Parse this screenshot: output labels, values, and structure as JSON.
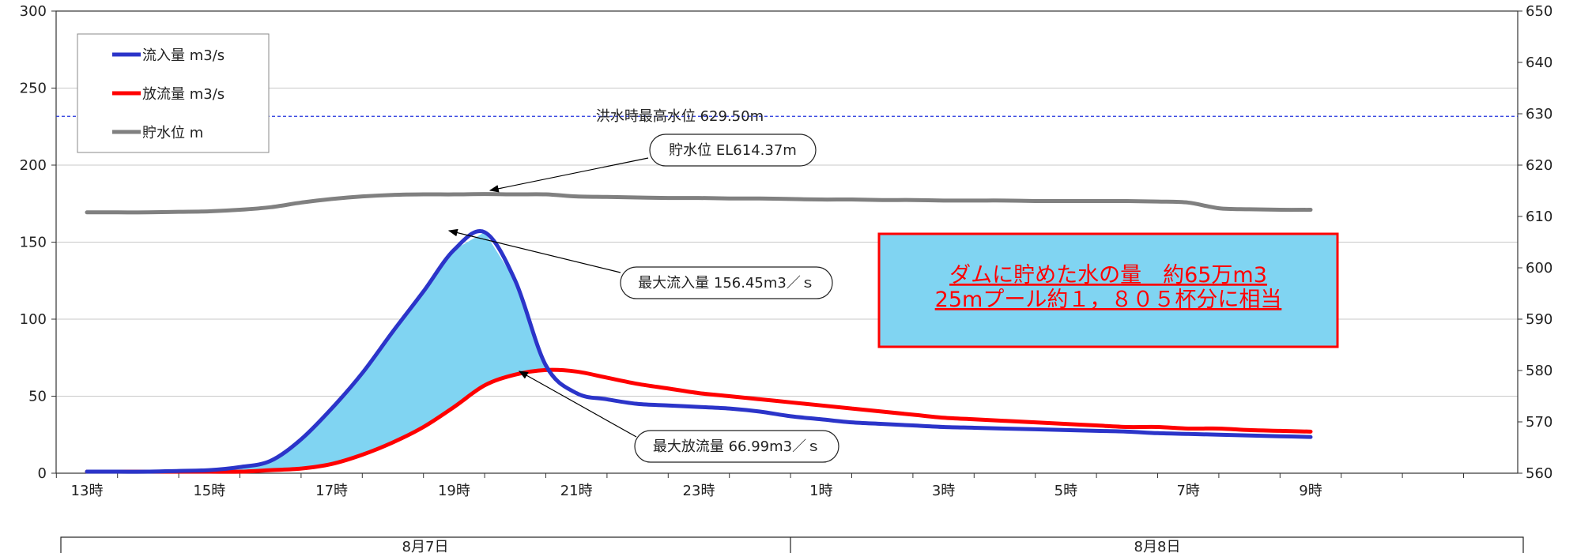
{
  "chart_data": {
    "type": "line",
    "x_ticks": [
      "13時",
      "15時",
      "17時",
      "19時",
      "21時",
      "23時",
      "1時",
      "3時",
      "5時",
      "7時",
      "9時"
    ],
    "y_left_ticks": [
      "0",
      "50",
      "100",
      "150",
      "200",
      "250",
      "300"
    ],
    "y_left_range": [
      0,
      300
    ],
    "y_right_ticks": [
      "560",
      "570",
      "580",
      "590",
      "600",
      "610",
      "620",
      "630",
      "640",
      "650"
    ],
    "y_right_range": [
      560,
      650
    ],
    "grid": true,
    "legend_position": "top-left",
    "x_hours": [
      0,
      0.5,
      1,
      1.5,
      2,
      2.5,
      3,
      3.5,
      4,
      4.5,
      5,
      5.5,
      6,
      6.5,
      7,
      7.5,
      8,
      8.5,
      9,
      9.5,
      10,
      10.5,
      11,
      11.5,
      12,
      12.5,
      13,
      13.5,
      14,
      14.5,
      15,
      15.5,
      16,
      16.5,
      17,
      17.5,
      18,
      18.5,
      19,
      19.5,
      20
    ],
    "series": [
      {
        "name": "流入量 m3/s",
        "axis": "left",
        "color": "#2b34c9",
        "values": [
          1,
          1,
          1,
          1.5,
          2,
          4,
          8,
          22,
          42,
          65,
          92,
          118,
          145,
          156.45,
          125,
          70,
          52,
          48,
          45,
          44,
          43,
          42,
          40,
          37,
          35,
          33,
          32,
          31,
          30,
          29.5,
          29,
          28.5,
          28,
          27.5,
          27,
          26,
          25.5,
          25,
          24.5,
          24,
          23.5
        ]
      },
      {
        "name": "放流量 m3/s",
        "axis": "left",
        "color": "#ff0000",
        "values": [
          1,
          1,
          1,
          1,
          1,
          1,
          2,
          3,
          6,
          12,
          20,
          30,
          43,
          57,
          64,
          66.99,
          66,
          62,
          58,
          55,
          52,
          50,
          48,
          46,
          44,
          42,
          40,
          38,
          36,
          35,
          34,
          33,
          32,
          31,
          30,
          30,
          29,
          29,
          28,
          27.5,
          27
        ]
      },
      {
        "name": "貯水位 m",
        "axis": "right",
        "color": "#808080",
        "values": [
          610.8,
          610.8,
          610.8,
          610.9,
          611,
          611.3,
          611.8,
          612.7,
          613.4,
          613.9,
          614.2,
          614.3,
          614.3,
          614.37,
          614.3,
          614.3,
          613.9,
          613.8,
          613.7,
          613.6,
          613.6,
          613.5,
          613.5,
          613.4,
          613.3,
          613.3,
          613.2,
          613.2,
          613.1,
          613.1,
          613.1,
          613,
          613,
          613,
          613,
          612.9,
          612.7,
          611.6,
          611.4,
          611.3,
          611.3
        ]
      }
    ],
    "reference_line": {
      "label": "洪水時最高水位 629.50m",
      "axis": "right",
      "value": 629.5,
      "color": "#2233dd"
    },
    "annotations": [
      {
        "key": "level",
        "text": "貯水位 EL614.37m",
        "target_hour": 6.5,
        "target_value": 614.37,
        "target_axis": "right"
      },
      {
        "key": "inflow",
        "text": "最大流入量 156.45m3／ｓ",
        "target_hour": 6.5,
        "target_value": 156.45,
        "target_axis": "left"
      },
      {
        "key": "outflow",
        "text": "最大放流量 66.99m3／ｓ",
        "target_hour": 7.2,
        "target_value": 66.99,
        "target_axis": "left"
      }
    ],
    "fill_between_color": "#80d4f2"
  },
  "note": {
    "line1": "ダムに貯めた水の量　約65万m3",
    "line2": "25mプール約１，８０５杯分に相当",
    "bg_color": "#80d4f2",
    "border_color": "#ff0000"
  },
  "dates": [
    "8月7日",
    "8月8日"
  ]
}
